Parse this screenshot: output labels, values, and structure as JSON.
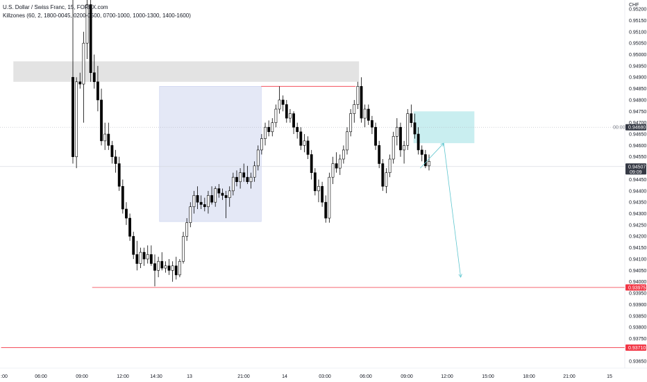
{
  "legend": {
    "symbol": "U.S. Dollar / Swiss Franc, 15, FOREX.com",
    "indicator": "Killzones (60, 2, 1800-0045, 0200-0500, 0700-1000, 1000-1300, 1400-1600)"
  },
  "colors": {
    "up_candle": "#ffffff",
    "down_candle": "#000000",
    "candle_border": "#000000",
    "supply_zone": "#e3e3e3",
    "range_box": "#dfe4f5",
    "target_box": "#c9eef0",
    "level_line": "#f23645",
    "projection_arrow": "#5ec6cf",
    "price_tag_current": "#363a45",
    "price_tag_level": "#f23645",
    "price_tag_marker": "#363a45"
  },
  "chart_data": {
    "type": "candlestick",
    "symbol": "U.S. Dollar / Swiss Franc",
    "timeframe": "15",
    "currency_label": "CHF",
    "y_ticks": [
      "0.95200",
      "0.95150",
      "0.95100",
      "0.95050",
      "0.95000",
      "0.94950",
      "0.94900",
      "0.94850",
      "0.94800",
      "0.94750",
      "0.94700",
      "0.94650",
      "0.94600",
      "0.94550",
      "0.94450",
      "0.94400",
      "0.94350",
      "0.94300",
      "0.94250",
      "0.94200",
      "0.94150",
      "0.94100",
      "0.94050",
      "0.94000",
      "0.93950",
      "0.93900",
      "0.93850",
      "0.93800",
      "0.93750",
      "0.93650"
    ],
    "y_tick_values": [
      0.952,
      0.9515,
      0.951,
      0.9505,
      0.95,
      0.9495,
      0.949,
      0.9485,
      0.948,
      0.9475,
      0.947,
      0.9465,
      0.946,
      0.9455,
      0.9445,
      0.944,
      0.9435,
      0.943,
      0.9425,
      0.942,
      0.9415,
      0.941,
      0.9405,
      0.94,
      0.9395,
      0.939,
      0.9385,
      0.938,
      0.9375,
      0.9365
    ],
    "ylim": [
      0.9362,
      0.9524
    ],
    "x_ticks": [
      ":00",
      "06:00",
      "09:00",
      "12:00",
      "14:30",
      "13",
      "21:00",
      "14",
      "03:00",
      "06:00",
      "09:00",
      "12:00",
      "15:00",
      "18:00",
      "21:00",
      "15"
    ],
    "x_tick_bars": [
      0,
      12,
      24,
      36,
      48,
      58,
      72,
      86,
      98,
      110,
      122,
      134,
      146,
      158,
      170,
      182
    ],
    "bar_range": [
      -1,
      189
    ],
    "candles": [
      {
        "o": 0.949,
        "h": 0.9525,
        "l": 0.9452,
        "c": 0.9455
      },
      {
        "o": 0.9455,
        "h": 0.949,
        "l": 0.945,
        "c": 0.9488
      },
      {
        "o": 0.9488,
        "h": 0.9492,
        "l": 0.9485,
        "c": 0.9487
      },
      {
        "o": 0.9487,
        "h": 0.951,
        "l": 0.947,
        "c": 0.9505
      },
      {
        "o": 0.9505,
        "h": 0.9525,
        "l": 0.9498,
        "c": 0.9522
      },
      {
        "o": 0.9522,
        "h": 0.9525,
        "l": 0.9488,
        "c": 0.9492
      },
      {
        "o": 0.9492,
        "h": 0.95,
        "l": 0.9485,
        "c": 0.9488
      },
      {
        "o": 0.9488,
        "h": 0.9495,
        "l": 0.9475,
        "c": 0.948
      },
      {
        "o": 0.948,
        "h": 0.9485,
        "l": 0.946,
        "c": 0.9462
      },
      {
        "o": 0.9462,
        "h": 0.947,
        "l": 0.9458,
        "c": 0.9465
      },
      {
        "o": 0.9465,
        "h": 0.947,
        "l": 0.9458,
        "c": 0.946
      },
      {
        "o": 0.946,
        "h": 0.9462,
        "l": 0.9452,
        "c": 0.9455
      },
      {
        "o": 0.9455,
        "h": 0.9458,
        "l": 0.9448,
        "c": 0.9452
      },
      {
        "o": 0.9452,
        "h": 0.9455,
        "l": 0.944,
        "c": 0.9442
      },
      {
        "o": 0.9442,
        "h": 0.9445,
        "l": 0.943,
        "c": 0.9432
      },
      {
        "o": 0.9432,
        "h": 0.9435,
        "l": 0.9425,
        "c": 0.9428
      },
      {
        "o": 0.9428,
        "h": 0.943,
        "l": 0.9418,
        "c": 0.942
      },
      {
        "o": 0.942,
        "h": 0.9422,
        "l": 0.941,
        "c": 0.9412
      },
      {
        "o": 0.9412,
        "h": 0.9418,
        "l": 0.9405,
        "c": 0.9408
      },
      {
        "o": 0.9408,
        "h": 0.9415,
        "l": 0.9406,
        "c": 0.9413
      },
      {
        "o": 0.9413,
        "h": 0.9415,
        "l": 0.9407,
        "c": 0.941
      },
      {
        "o": 0.941,
        "h": 0.9416,
        "l": 0.9408,
        "c": 0.9412
      },
      {
        "o": 0.9412,
        "h": 0.9416,
        "l": 0.9407,
        "c": 0.9408
      },
      {
        "o": 0.9408,
        "h": 0.9412,
        "l": 0.9398,
        "c": 0.9405
      },
      {
        "o": 0.9405,
        "h": 0.9411,
        "l": 0.9402,
        "c": 0.9409
      },
      {
        "o": 0.9409,
        "h": 0.9413,
        "l": 0.9405,
        "c": 0.9406
      },
      {
        "o": 0.9406,
        "h": 0.9409,
        "l": 0.9404,
        "c": 0.9407
      },
      {
        "o": 0.9407,
        "h": 0.941,
        "l": 0.9403,
        "c": 0.9405
      },
      {
        "o": 0.9405,
        "h": 0.9409,
        "l": 0.94,
        "c": 0.9407
      },
      {
        "o": 0.9407,
        "h": 0.9411,
        "l": 0.9401,
        "c": 0.9403
      },
      {
        "o": 0.9403,
        "h": 0.941,
        "l": 0.9402,
        "c": 0.9409
      },
      {
        "o": 0.9409,
        "h": 0.9422,
        "l": 0.9408,
        "c": 0.942
      },
      {
        "o": 0.942,
        "h": 0.9428,
        "l": 0.9418,
        "c": 0.9426
      },
      {
        "o": 0.9426,
        "h": 0.9435,
        "l": 0.9424,
        "c": 0.9433
      },
      {
        "o": 0.9433,
        "h": 0.944,
        "l": 0.943,
        "c": 0.9438
      },
      {
        "o": 0.9438,
        "h": 0.9442,
        "l": 0.9432,
        "c": 0.9435
      },
      {
        "o": 0.9435,
        "h": 0.9438,
        "l": 0.9432,
        "c": 0.9434
      },
      {
        "o": 0.9434,
        "h": 0.9437,
        "l": 0.9431,
        "c": 0.9433
      },
      {
        "o": 0.9433,
        "h": 0.944,
        "l": 0.943,
        "c": 0.9438
      },
      {
        "o": 0.9438,
        "h": 0.9442,
        "l": 0.9434,
        "c": 0.9435
      },
      {
        "o": 0.9435,
        "h": 0.9442,
        "l": 0.9433,
        "c": 0.9441
      },
      {
        "o": 0.9441,
        "h": 0.9443,
        "l": 0.9437,
        "c": 0.9439
      },
      {
        "o": 0.9439,
        "h": 0.9441,
        "l": 0.9436,
        "c": 0.9438
      },
      {
        "o": 0.9438,
        "h": 0.944,
        "l": 0.9428,
        "c": 0.9437
      },
      {
        "o": 0.9437,
        "h": 0.9442,
        "l": 0.9433,
        "c": 0.944
      },
      {
        "o": 0.944,
        "h": 0.9448,
        "l": 0.9438,
        "c": 0.9446
      },
      {
        "o": 0.9446,
        "h": 0.9449,
        "l": 0.9442,
        "c": 0.9444
      },
      {
        "o": 0.9444,
        "h": 0.945,
        "l": 0.9441,
        "c": 0.9448
      },
      {
        "o": 0.9448,
        "h": 0.9452,
        "l": 0.9444,
        "c": 0.9446
      },
      {
        "o": 0.9446,
        "h": 0.9451,
        "l": 0.9443,
        "c": 0.9444
      },
      {
        "o": 0.9444,
        "h": 0.9448,
        "l": 0.9441,
        "c": 0.9446
      },
      {
        "o": 0.9446,
        "h": 0.9453,
        "l": 0.9444,
        "c": 0.9451
      },
      {
        "o": 0.9451,
        "h": 0.946,
        "l": 0.9449,
        "c": 0.9458
      },
      {
        "o": 0.9458,
        "h": 0.9465,
        "l": 0.9456,
        "c": 0.9463
      },
      {
        "o": 0.9463,
        "h": 0.947,
        "l": 0.946,
        "c": 0.9468
      },
      {
        "o": 0.9468,
        "h": 0.9471,
        "l": 0.9464,
        "c": 0.9466
      },
      {
        "o": 0.9466,
        "h": 0.9472,
        "l": 0.9464,
        "c": 0.947
      },
      {
        "o": 0.947,
        "h": 0.9478,
        "l": 0.9468,
        "c": 0.9476
      },
      {
        "o": 0.9476,
        "h": 0.9486,
        "l": 0.9474,
        "c": 0.948
      },
      {
        "o": 0.948,
        "h": 0.9482,
        "l": 0.9475,
        "c": 0.9478
      },
      {
        "o": 0.9478,
        "h": 0.948,
        "l": 0.947,
        "c": 0.9472
      },
      {
        "o": 0.9472,
        "h": 0.9476,
        "l": 0.947,
        "c": 0.9474
      },
      {
        "o": 0.9474,
        "h": 0.9475,
        "l": 0.9465,
        "c": 0.9468
      },
      {
        "o": 0.9468,
        "h": 0.947,
        "l": 0.9463,
        "c": 0.9466
      },
      {
        "o": 0.9466,
        "h": 0.9468,
        "l": 0.9458,
        "c": 0.946
      },
      {
        "o": 0.946,
        "h": 0.9465,
        "l": 0.9457,
        "c": 0.9462
      },
      {
        "o": 0.9462,
        "h": 0.9464,
        "l": 0.9454,
        "c": 0.9456
      },
      {
        "o": 0.9456,
        "h": 0.9458,
        "l": 0.9445,
        "c": 0.9448
      },
      {
        "o": 0.9448,
        "h": 0.945,
        "l": 0.9438,
        "c": 0.944
      },
      {
        "o": 0.944,
        "h": 0.9445,
        "l": 0.9435,
        "c": 0.9442
      },
      {
        "o": 0.9442,
        "h": 0.9444,
        "l": 0.9433,
        "c": 0.9435
      },
      {
        "o": 0.9435,
        "h": 0.9438,
        "l": 0.9426,
        "c": 0.9428
      },
      {
        "o": 0.9428,
        "h": 0.9448,
        "l": 0.9426,
        "c": 0.9446
      },
      {
        "o": 0.9446,
        "h": 0.9455,
        "l": 0.9443,
        "c": 0.9452
      },
      {
        "o": 0.9452,
        "h": 0.9457,
        "l": 0.9448,
        "c": 0.945
      },
      {
        "o": 0.945,
        "h": 0.9456,
        "l": 0.9447,
        "c": 0.9454
      },
      {
        "o": 0.9454,
        "h": 0.946,
        "l": 0.9452,
        "c": 0.9458
      },
      {
        "o": 0.9458,
        "h": 0.9468,
        "l": 0.9456,
        "c": 0.9466
      },
      {
        "o": 0.9466,
        "h": 0.9476,
        "l": 0.9464,
        "c": 0.9474
      },
      {
        "o": 0.9474,
        "h": 0.948,
        "l": 0.947,
        "c": 0.9478
      },
      {
        "o": 0.9478,
        "h": 0.9488,
        "l": 0.9476,
        "c": 0.9486
      },
      {
        "o": 0.9486,
        "h": 0.949,
        "l": 0.947,
        "c": 0.9472
      },
      {
        "o": 0.9472,
        "h": 0.9478,
        "l": 0.9468,
        "c": 0.9476
      },
      {
        "o": 0.9476,
        "h": 0.9478,
        "l": 0.9469,
        "c": 0.9471
      },
      {
        "o": 0.9471,
        "h": 0.9473,
        "l": 0.9465,
        "c": 0.9468
      },
      {
        "o": 0.9468,
        "h": 0.947,
        "l": 0.9458,
        "c": 0.946
      },
      {
        "o": 0.946,
        "h": 0.9462,
        "l": 0.945,
        "c": 0.9452
      },
      {
        "o": 0.9452,
        "h": 0.9454,
        "l": 0.944,
        "c": 0.9442
      },
      {
        "o": 0.9442,
        "h": 0.945,
        "l": 0.9439,
        "c": 0.9448
      },
      {
        "o": 0.9448,
        "h": 0.9456,
        "l": 0.9446,
        "c": 0.9454
      },
      {
        "o": 0.9454,
        "h": 0.9466,
        "l": 0.9452,
        "c": 0.9464
      },
      {
        "o": 0.9464,
        "h": 0.9472,
        "l": 0.946,
        "c": 0.9468
      },
      {
        "o": 0.9468,
        "h": 0.947,
        "l": 0.9455,
        "c": 0.9458
      },
      {
        "o": 0.9458,
        "h": 0.9462,
        "l": 0.9452,
        "c": 0.946
      },
      {
        "o": 0.946,
        "h": 0.9476,
        "l": 0.9458,
        "c": 0.9474
      },
      {
        "o": 0.9474,
        "h": 0.9478,
        "l": 0.9468,
        "c": 0.947
      },
      {
        "o": 0.947,
        "h": 0.9474,
        "l": 0.9463,
        "c": 0.9465
      },
      {
        "o": 0.9465,
        "h": 0.9468,
        "l": 0.9456,
        "c": 0.9458
      },
      {
        "o": 0.9458,
        "h": 0.946,
        "l": 0.9453,
        "c": 0.9456
      },
      {
        "o": 0.9456,
        "h": 0.9458,
        "l": 0.945,
        "c": 0.9451
      },
      {
        "o": 0.9451,
        "h": 0.9456,
        "l": 0.9449,
        "c": 0.9453
      }
    ],
    "bar_positions": [
      0,
      1,
      2,
      3,
      4,
      5,
      6,
      7,
      8,
      9,
      10,
      11,
      12,
      13,
      14,
      15,
      16,
      17,
      18,
      19,
      20,
      21,
      22,
      23,
      24,
      25,
      26,
      27,
      28,
      29,
      30,
      31,
      32,
      33,
      34,
      35,
      36,
      37,
      38,
      39,
      40,
      41,
      42,
      43,
      44,
      45,
      46,
      47,
      48,
      49,
      50,
      51,
      52,
      53,
      54,
      55,
      56,
      57,
      58,
      59,
      60,
      61,
      62,
      63,
      64,
      65,
      66,
      67,
      68,
      69,
      70,
      71,
      72,
      73,
      74,
      75,
      76,
      77,
      78,
      79,
      80,
      81,
      82,
      83,
      84,
      85,
      86,
      87,
      88,
      89,
      90,
      91,
      92,
      93,
      94,
      95,
      96,
      97,
      98,
      99,
      100,
      101
    ],
    "bar_time_mapping": "bar_positions are spaced on the time axis defined by x_tick_bars",
    "zones": [
      {
        "name": "supply",
        "x_bars": [
          3,
          108
        ],
        "y": [
          0.9488,
          0.9497
        ]
      },
      {
        "name": "range",
        "x_bars": [
          49,
          78
        ],
        "y": [
          0.94265,
          0.9486
        ]
      },
      {
        "name": "target",
        "x_bars": [
          124,
          142
        ],
        "y": [
          0.9461,
          0.9475
        ]
      }
    ],
    "levels": [
      {
        "value": 0.93975,
        "label": "0.93975",
        "from_bar": 27
      },
      {
        "value": 0.9371,
        "label": "0.93710",
        "from_bar": -1
      },
      {
        "value": 0.9486,
        "label": "",
        "from_bar": 78,
        "to_bar": 107
      }
    ],
    "marker_line": {
      "value": 0.9468,
      "label": "0.94680",
      "time_label": "00:00"
    },
    "current_price": {
      "value": 0.94507,
      "label": "0.94507",
      "countdown": "09:09"
    },
    "projection": [
      {
        "from": [
          126,
          0.945
        ],
        "to": [
          133,
          0.9461
        ]
      },
      {
        "from": [
          133,
          0.9461
        ],
        "to": [
          138,
          0.9402
        ]
      }
    ]
  }
}
